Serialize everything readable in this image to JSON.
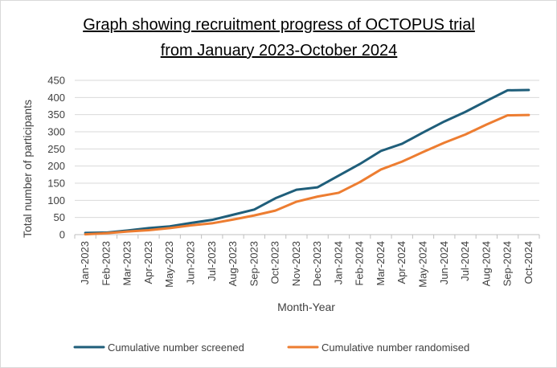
{
  "chart_data": {
    "type": "line",
    "title": [
      "Graph showing recruitment progress of OCTOPUS trial",
      "from January 2023-October 2024"
    ],
    "xlabel": "Month-Year",
    "ylabel": "Total number of participants",
    "categories": [
      "Jan-2023",
      "Feb-2023",
      "Mar-2023",
      "Apr-2023",
      "May-2023",
      "Jun-2023",
      "Jul-2023",
      "Aug-2023",
      "Sep-2023",
      "Oct-2023",
      "Nov-2023",
      "Dec-2023",
      "Jan-2024",
      "Feb-2024",
      "Mar-2024",
      "Apr-2024",
      "May-2024",
      "Jun-2024",
      "Jul-2024",
      "Aug-2024",
      "Sep-2024",
      "Oct-2024"
    ],
    "ylim": [
      0,
      450
    ],
    "yticks": [
      0,
      50,
      100,
      150,
      200,
      250,
      300,
      350,
      400,
      450
    ],
    "grid": true,
    "legend_position": "bottom",
    "series": [
      {
        "name": "Cumulative number screened",
        "color": "#1f5e7a",
        "values": [
          5,
          6,
          12,
          19,
          24,
          34,
          43,
          58,
          73,
          106,
          131,
          138,
          172,
          206,
          244,
          265,
          298,
          330,
          358,
          390,
          421,
          422
        ]
      },
      {
        "name": "Cumulative number randomised",
        "color": "#ed7d31",
        "values": [
          1,
          4,
          9,
          13,
          19,
          27,
          33,
          44,
          56,
          70,
          96,
          111,
          122,
          153,
          190,
          213,
          241,
          268,
          292,
          321,
          348,
          349
        ]
      }
    ]
  }
}
